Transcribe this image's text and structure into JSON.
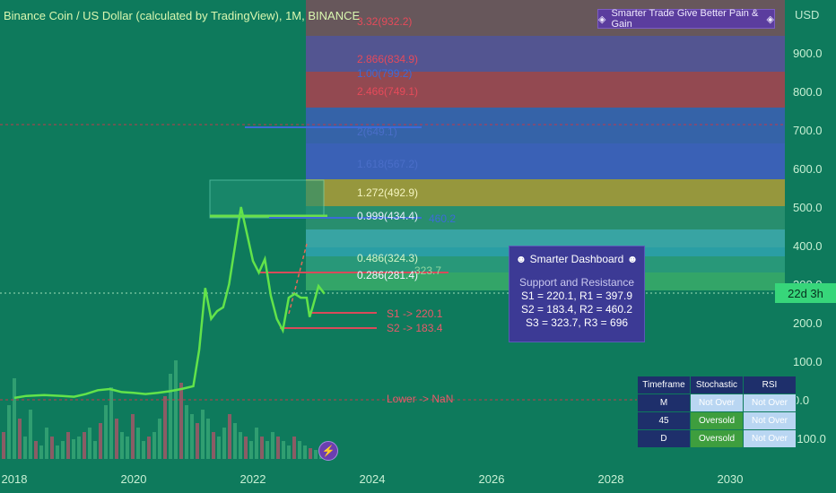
{
  "title": "Binance Coin / US Dollar (calculated by TradingView), 1M, BINANCE",
  "banner": {
    "icon": "crystal-icon",
    "text": "Smarter Trade Give Better Pain & Gain"
  },
  "currency": "USD",
  "price_tag": "22d 3h",
  "colors": {
    "background": "#0e7a5c",
    "price_line": "#62e34a",
    "accent": "#37d67a"
  },
  "chart_data": {
    "type": "line",
    "title": "Binance Coin / US Dollar (calculated by TradingView), 1M, BINANCE",
    "x_ticks": [
      "2018",
      "2020",
      "2022",
      "2024",
      "2026",
      "2028",
      "2030"
    ],
    "y_ticks": [
      "-100.0",
      "0.0",
      "100.0",
      "200.0",
      "300.0",
      "400.0",
      "500.0",
      "600.0",
      "700.0",
      "800.0",
      "900.0"
    ],
    "ylim": [
      -130,
      1000
    ],
    "xlim": [
      2018.0,
      2030.6
    ],
    "series": [
      {
        "values": [
          [
            2018.0,
            5
          ],
          [
            2018.2,
            10
          ],
          [
            2018.5,
            12
          ],
          [
            2018.8,
            10
          ],
          [
            2019.0,
            8
          ],
          [
            2019.2,
            15
          ],
          [
            2019.4,
            25
          ],
          [
            2019.6,
            28
          ],
          [
            2019.8,
            20
          ],
          [
            2020.0,
            18
          ],
          [
            2020.2,
            15
          ],
          [
            2020.4,
            18
          ],
          [
            2020.6,
            22
          ],
          [
            2020.8,
            28
          ],
          [
            2021.0,
            35
          ],
          [
            2021.1,
            130
          ],
          [
            2021.2,
            290
          ],
          [
            2021.3,
            210
          ],
          [
            2021.4,
            230
          ],
          [
            2021.5,
            240
          ],
          [
            2021.6,
            300
          ],
          [
            2021.7,
            400
          ],
          [
            2021.8,
            500
          ],
          [
            2021.9,
            430
          ],
          [
            2022.0,
            360
          ],
          [
            2022.1,
            330
          ],
          [
            2022.2,
            365
          ],
          [
            2022.3,
            270
          ],
          [
            2022.4,
            210
          ],
          [
            2022.5,
            180
          ],
          [
            2022.6,
            265
          ],
          [
            2022.7,
            275
          ],
          [
            2022.8,
            265
          ],
          [
            2022.9,
            265
          ],
          [
            2022.95,
            215
          ],
          [
            2023.0,
            240
          ],
          [
            2023.1,
            295
          ],
          [
            2023.2,
            275
          ]
        ]
      }
    ],
    "fib_levels": [
      {
        "label": "3.32(932.2)",
        "value": 932.2
      },
      {
        "label": "2.866(834.9)",
        "value": 834.9
      },
      {
        "label": "1.00(799.2)",
        "value": 799.2
      },
      {
        "label": "2.466(749.1)",
        "value": 749.1
      },
      {
        "label": "2(649.1)",
        "value": 649.1
      },
      {
        "label": "1.618(567.2)",
        "value": 567.2
      },
      {
        "label": "1.272(492.9)",
        "value": 492.9
      },
      {
        "label": "0.999(434.4)",
        "value": 434.4
      },
      {
        "label": "460.2",
        "value": 460.2
      },
      {
        "label": "0.486(324.3)",
        "value": 324.3
      },
      {
        "label": "0.286(281.4)",
        "value": 281.4
      },
      {
        "label": "323.7",
        "value": 323.7
      }
    ],
    "support_labels": [
      {
        "label": "S1 -> 220.1",
        "value": 220.1
      },
      {
        "label": "S2 -> 183.4",
        "value": 183.4
      },
      {
        "label": "Lower -> NaN",
        "value": 0
      }
    ],
    "volume": [
      30,
      60,
      90,
      45,
      25,
      55,
      20,
      15,
      35,
      25,
      15,
      20,
      30,
      22,
      25,
      30,
      35,
      20,
      40,
      60,
      80,
      45,
      30,
      25,
      50,
      35,
      20,
      25,
      30,
      45,
      70,
      95,
      110,
      85,
      60,
      50,
      40,
      55,
      45,
      30,
      25,
      35,
      50,
      40,
      30,
      25,
      20,
      35,
      25,
      20,
      30,
      25,
      20,
      15,
      25,
      20,
      15,
      12,
      10,
      8
    ]
  },
  "dashboard": {
    "title": "Smarter Dashboard",
    "subtitle": "Support and Resistance",
    "lines": [
      "S1 = 220.1, R1 = 397.9",
      "S2 = 183.4, R2 = 460.2",
      "S3 = 323.7, R3 = 696"
    ]
  },
  "stoch_table": {
    "headers": [
      "Timeframe",
      "Stochastic",
      "RSI"
    ],
    "rows": [
      {
        "tf": "M",
        "stoch": "Not Over",
        "rsi": "Not Over"
      },
      {
        "tf": "45",
        "stoch": "Oversold",
        "rsi": "Not Over"
      },
      {
        "tf": "D",
        "stoch": "Oversold",
        "rsi": "Not Over"
      }
    ]
  }
}
